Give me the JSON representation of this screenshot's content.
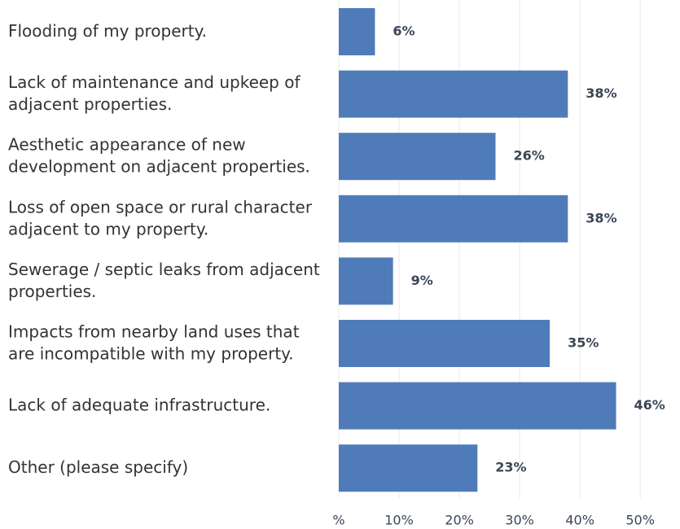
{
  "chart_data": {
    "type": "barh",
    "categories": [
      "Flooding of my property.",
      "Lack of maintenance and upkeep of adjacent properties.",
      "Aesthetic appearance of new development on adjacent properties.",
      "Loss of open space or rural character adjacent to my property.",
      "Sewerage / septic leaks from adjacent properties.",
      "Impacts from nearby land uses that are incompatible with my property.",
      "Lack of adequate infrastructure.",
      "Other (please specify)"
    ],
    "values": [
      6,
      38,
      26,
      38,
      9,
      35,
      46,
      23
    ],
    "value_labels": [
      "6%",
      "38%",
      "26%",
      "38%",
      "9%",
      "35%",
      "46%",
      "23%"
    ],
    "color": "#4f7cb9",
    "xlim": [
      0,
      56.6
    ],
    "xticks": [
      {
        "value": 0,
        "label": "%"
      },
      {
        "value": 10,
        "label": "10%"
      },
      {
        "value": 20,
        "label": "20%"
      },
      {
        "value": 30,
        "label": "30%"
      },
      {
        "value": 40,
        "label": "40%"
      },
      {
        "value": 50,
        "label": "50%"
      }
    ],
    "grid": true
  }
}
